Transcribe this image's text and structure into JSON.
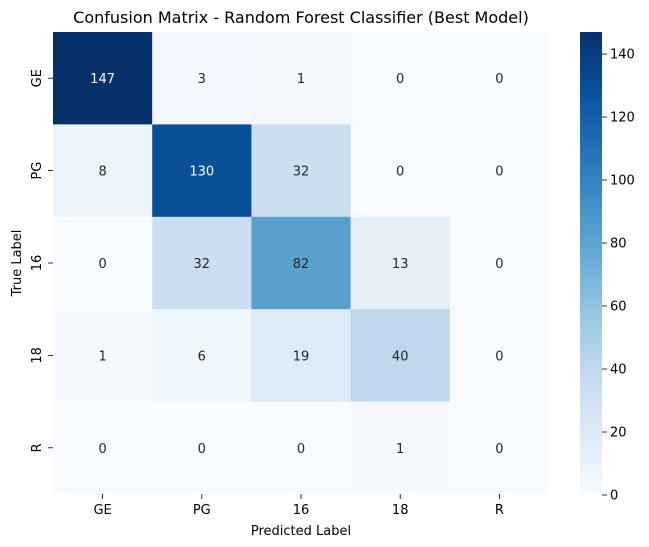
{
  "chart_data": {
    "type": "heatmap",
    "title": "Confusion Matrix - Random Forest Classifier (Best Model)",
    "xlabel": "Predicted Label",
    "ylabel": "True Label",
    "x_categories": [
      "GE",
      "PG",
      "16",
      "18",
      "R"
    ],
    "y_categories": [
      "GE",
      "PG",
      "16",
      "18",
      "R"
    ],
    "values": [
      [
        147,
        3,
        1,
        0,
        0
      ],
      [
        8,
        130,
        32,
        0,
        0
      ],
      [
        0,
        32,
        82,
        13,
        0
      ],
      [
        1,
        6,
        19,
        40,
        0
      ],
      [
        0,
        0,
        0,
        1,
        0
      ]
    ],
    "colorbar": {
      "min": 0,
      "max": 147,
      "ticks": [
        0,
        20,
        40,
        60,
        80,
        100,
        120,
        140
      ],
      "colormap": "Blues",
      "color_low": "#f7fbff",
      "color_high": "#08306b"
    }
  }
}
